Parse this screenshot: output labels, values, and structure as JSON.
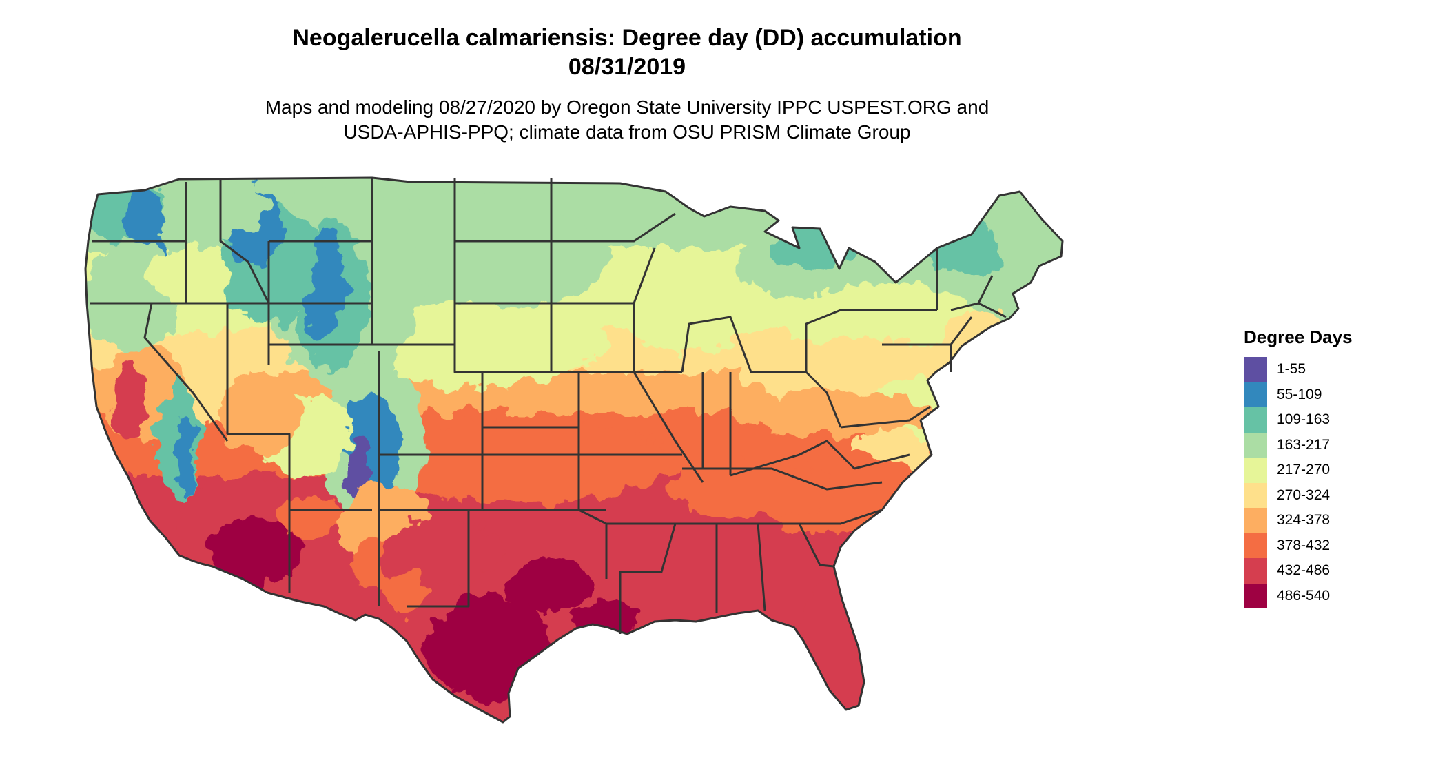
{
  "title": {
    "line1": "Neogalerucella calmariensis: Degree day (DD) accumulation",
    "line2": "08/31/2019"
  },
  "subtitle": {
    "line1": "Maps and modeling 08/27/2020 by Oregon State University IPPC USPEST.ORG and",
    "line2": "USDA-APHIS-PPQ; climate data from OSU PRISM Climate Group"
  },
  "legend": {
    "title": "Degree Days",
    "items": [
      {
        "label": "1-55",
        "color": "#5e4fa2"
      },
      {
        "label": "55-109",
        "color": "#3288bd"
      },
      {
        "label": "109-163",
        "color": "#66c2a5"
      },
      {
        "label": "163-217",
        "color": "#abdda4"
      },
      {
        "label": "217-270",
        "color": "#e6f598"
      },
      {
        "label": "270-324",
        "color": "#fee08b"
      },
      {
        "label": "324-378",
        "color": "#fdae61"
      },
      {
        "label": "378-432",
        "color": "#f46d43"
      },
      {
        "label": "432-486",
        "color": "#d53e4f"
      },
      {
        "label": "486-540",
        "color": "#9e0142"
      }
    ]
  },
  "map": {
    "region": "contiguous United States",
    "border_color": "#333333"
  }
}
